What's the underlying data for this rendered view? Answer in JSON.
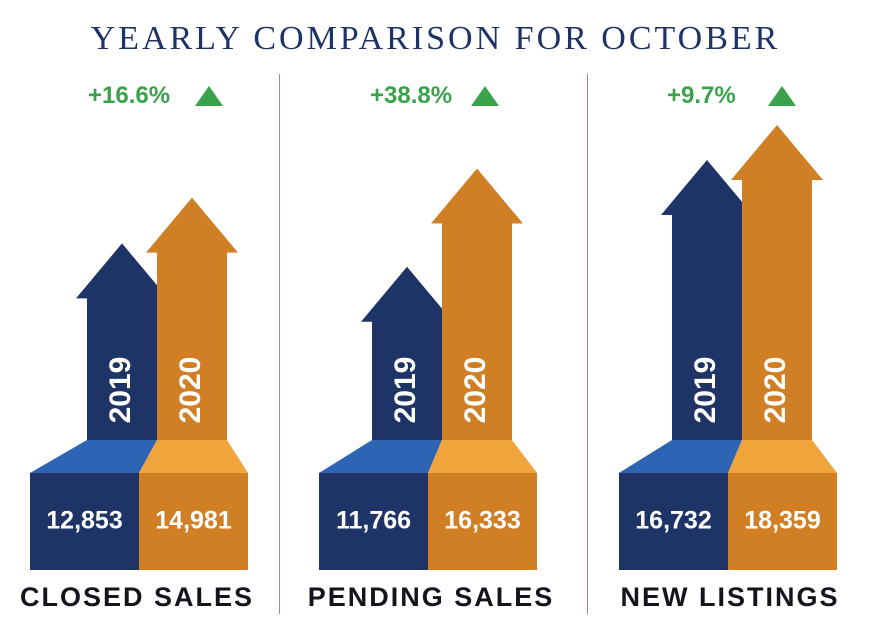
{
  "title": "YEARLY COMPARISON FOR OCTOBER",
  "colors": {
    "y2019": "#1e3466",
    "y2019_top": "#2e64b4",
    "y2020": "#d07f24",
    "y2020_top": "#f0a43c",
    "change_up": "#3aa24a",
    "title": "#1e3466"
  },
  "chart_data": {
    "type": "bar",
    "title": "YEARLY COMPARISON FOR OCTOBER",
    "series_labels": [
      "2019",
      "2020"
    ],
    "groups": [
      {
        "name": "CLOSED SALES",
        "values": [
          12853,
          14981
        ],
        "value_labels": [
          "12,853",
          "14,981"
        ],
        "change": "+16.6%",
        "direction": "up"
      },
      {
        "name": "PENDING SALES",
        "values": [
          11766,
          16333
        ],
        "value_labels": [
          "11,766",
          "16,333"
        ],
        "change": "+38.8%",
        "direction": "up"
      },
      {
        "name": "NEW LISTINGS",
        "values": [
          16732,
          18359
        ],
        "value_labels": [
          "16,732",
          "18,359"
        ],
        "change": "+9.7%",
        "direction": "up"
      }
    ]
  }
}
